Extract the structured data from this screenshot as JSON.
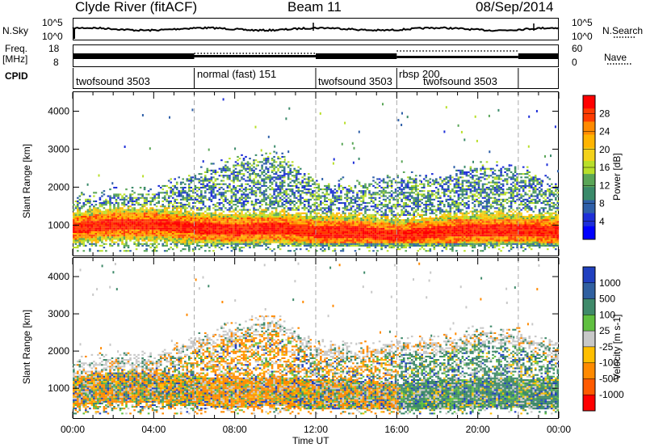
{
  "header": {
    "station": "Clyde River (fitACF)",
    "beam": "Beam 11",
    "date": "08/Sep/2014"
  },
  "top_panels": {
    "nsky_label": "N.Sky",
    "nsearch_label": "N.Search",
    "noise_ticks": [
      "10^5",
      "10^0"
    ],
    "freq_label": "Freq.",
    "freq_unit": "[MHz]",
    "freq_ticks": [
      "18",
      "8"
    ],
    "nave_label": "Nave",
    "nave_ticks": [
      "60",
      "0"
    ],
    "cpid_label": "CPID"
  },
  "cpid_segments": [
    {
      "label": "twofsound 3503",
      "start_h": 0,
      "end_h": 6
    },
    {
      "label": "normal (fast) 151",
      "start_h": 6,
      "end_h": 12
    },
    {
      "label": "twofsound 3503",
      "start_h": 12,
      "end_h": 16
    },
    {
      "label": "rbsp 200",
      "start_h": 16,
      "end_h": 22
    },
    {
      "label": "twofsound 3503",
      "start_h": 16.5,
      "end_h": 22
    }
  ],
  "time_axis": {
    "label": "Time UT",
    "ticks": [
      "00:00",
      "04:00",
      "08:00",
      "12:00",
      "16:00",
      "20:00",
      "00:00"
    ]
  },
  "power_colorbar": {
    "label": "Power [dB]",
    "ticks": [
      "28",
      "24",
      "20",
      "16",
      "12",
      "8",
      "4"
    ],
    "colors": [
      "#ff0000",
      "#ff3b00",
      "#ff8a00",
      "#ffb400",
      "#f3d21a",
      "#b8df2a",
      "#5aa657",
      "#3a8a6a",
      "#2e5fa8",
      "#1e2fd8",
      "#0000ff"
    ]
  },
  "velocity_colorbar": {
    "label": "Velocity [m s-1]",
    "ticks": [
      "1000",
      "500",
      "100",
      "25",
      "-25",
      "-100",
      "-500",
      "-1000"
    ],
    "colors": [
      "#2040c0",
      "#3060a0",
      "#3f8a6a",
      "#60c040",
      "#c8c8c8",
      "#ffbf00",
      "#ff8a00",
      "#ff5a00",
      "#ff0000"
    ]
  },
  "chart_data": [
    {
      "type": "heatmap",
      "title": "Power",
      "xlabel": "Time UT",
      "ylabel": "Slant Range [km]",
      "xlim": [
        0,
        24
      ],
      "ylim": [
        200,
        4500
      ],
      "y_ticks": [
        1000,
        2000,
        3000,
        4000
      ],
      "colorbar_range_db": [
        0,
        30
      ],
      "band_profile": {
        "hours": [
          0,
          2,
          4,
          6,
          8,
          10,
          12,
          14,
          16,
          18,
          20,
          22,
          24
        ],
        "core_range_km": [
          900,
          1000,
          1000,
          900,
          850,
          900,
          800,
          800,
          700,
          800,
          850,
          850,
          800
        ],
        "top_range_km": [
          1600,
          1800,
          1800,
          2300,
          2600,
          2800,
          2100,
          2000,
          2200,
          2200,
          2500,
          2400,
          2000
        ]
      }
    },
    {
      "type": "heatmap",
      "title": "Velocity",
      "xlabel": "Time UT",
      "ylabel": "Slant Range [km]",
      "xlim": [
        0,
        24
      ],
      "ylim": [
        200,
        4500
      ],
      "y_ticks": [
        1000,
        2000,
        3000,
        4000
      ],
      "colorbar_range_ms": [
        -1000,
        1000
      ],
      "band_profile": {
        "hours": [
          0,
          2,
          4,
          6,
          8,
          10,
          12,
          14,
          16,
          18,
          20,
          22,
          24
        ],
        "core_range_km": [
          900,
          1000,
          1000,
          900,
          850,
          900,
          800,
          800,
          700,
          800,
          850,
          850,
          800
        ],
        "top_range_km": [
          1600,
          1800,
          1800,
          2300,
          2600,
          2800,
          2100,
          2000,
          2200,
          2200,
          2500,
          2400,
          2000
        ]
      }
    }
  ]
}
